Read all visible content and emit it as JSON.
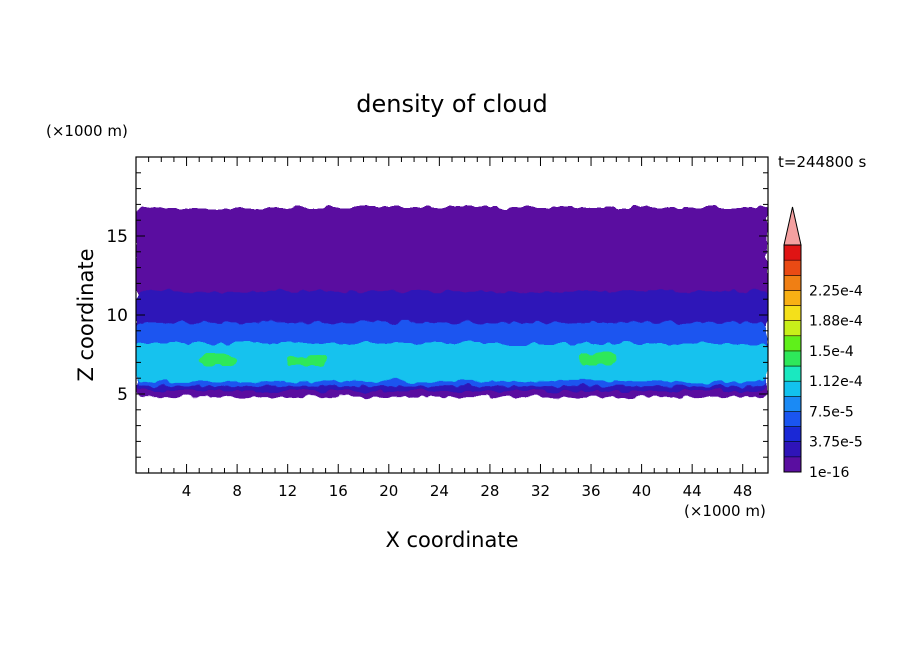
{
  "chart_data": {
    "type": "heatmap",
    "title": "density of cloud",
    "xlabel": "X coordinate",
    "ylabel": "Z coordinate",
    "x_unit": "(×1000 m)",
    "y_unit": "(×1000 m)",
    "time_label": "t=244800 s",
    "xlim": [
      0,
      50
    ],
    "ylim": [
      0,
      20
    ],
    "x_ticks": [
      4,
      8,
      12,
      16,
      20,
      24,
      28,
      32,
      36,
      40,
      44,
      48
    ],
    "y_ticks": [
      5,
      10,
      15
    ],
    "colorbar": {
      "extend": "max",
      "overflow_color": "#f4a0a0",
      "level_labels": [
        "1e-16",
        "3.75e-5",
        "7.5e-5",
        "1.12e-4",
        "1.5e-4",
        "1.88e-4",
        "2.25e-4"
      ],
      "colors": [
        "#5a0ea0",
        "#2f14b8",
        "#1a28d6",
        "#1a55f0",
        "#1a8af5",
        "#12c2ee",
        "#1ae8c0",
        "#2ee85a",
        "#5ff01a",
        "#c8f01a",
        "#f4e01a",
        "#f8b014",
        "#f07f14",
        "#ea4a14",
        "#e01414"
      ]
    },
    "regions": [
      {
        "level": 0,
        "x_range": [
          0,
          50
        ],
        "z_base": 4.8,
        "z_top": 16.8,
        "description": "cloud envelope"
      },
      {
        "level": 1,
        "x_range": [
          0,
          50
        ],
        "z_base": 5.2,
        "z_top": 11.5
      },
      {
        "level": 3,
        "x_range": [
          0,
          50
        ],
        "z_base": 5.5,
        "z_top": 9.5
      },
      {
        "level": 5,
        "x_range": [
          0,
          50
        ],
        "z_base": 5.8,
        "z_top": 8.2
      },
      {
        "level": 7,
        "x_range": [
          5,
          8
        ],
        "z_base": 6.8,
        "z_top": 7.5
      },
      {
        "level": 7,
        "x_range": [
          12,
          15
        ],
        "z_base": 6.8,
        "z_top": 7.4
      },
      {
        "level": 7,
        "x_range": [
          35,
          38
        ],
        "z_base": 6.9,
        "z_top": 7.6
      }
    ]
  }
}
